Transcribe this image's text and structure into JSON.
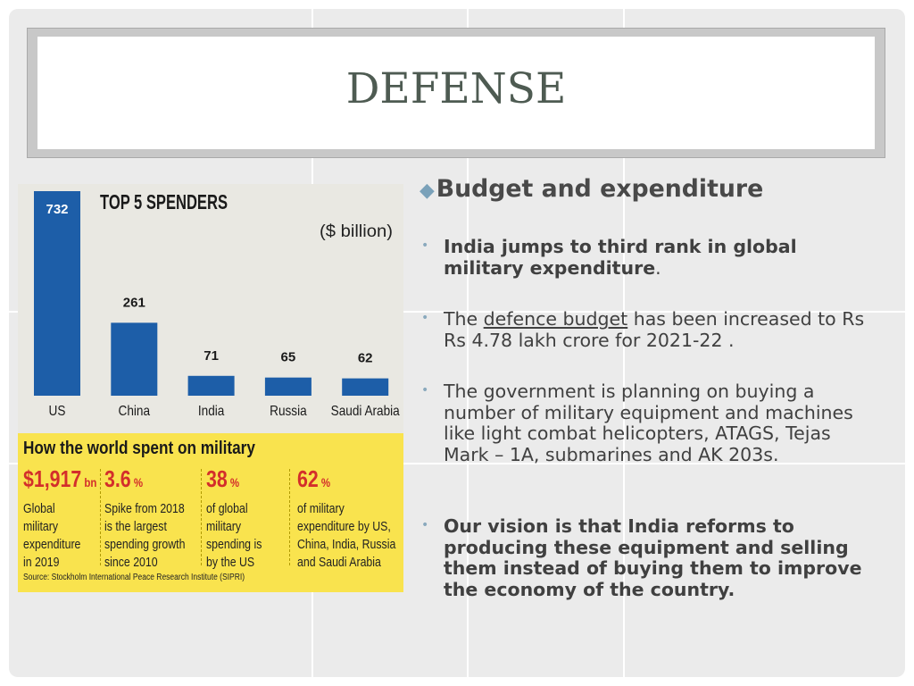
{
  "slide": {
    "title": "DEFENSE",
    "heading": "Budget and expenditure",
    "heading_bullet_icon": "diamond-icon",
    "bullets": [
      {
        "parts": [
          {
            "text": "India jumps to third rank in global military expenditure",
            "bold": true
          },
          {
            "text": ".",
            "bold": false
          }
        ]
      },
      {
        "parts": [
          {
            "text": "The ",
            "bold": false
          },
          {
            "text": "defence budget",
            "link": true
          },
          {
            "text": " has been increased to Rs Rs 4.78 lakh crore for 2021-22 .",
            "bold": false
          }
        ]
      },
      {
        "parts": [
          {
            "text": "The government is planning on buying a number of military equipment and machines like light combat helicopters, ATAGS, Tejas Mark – 1A, submarines and AK 203s.",
            "bold": false
          }
        ]
      },
      {
        "parts": [
          {
            "text": "Our vision is that India reforms to producing these equipment and selling them instead of buying them to improve the economy of the country.",
            "bold": true
          }
        ]
      }
    ]
  },
  "chart_data": {
    "type": "bar",
    "title": "TOP 5 SPENDERS",
    "unit_label": "($ billion)",
    "categories": [
      "US",
      "China",
      "India",
      "Russia",
      "Saudi Arabia"
    ],
    "values": [
      732,
      261,
      71,
      65,
      62
    ],
    "value_labels": [
      "732",
      "261",
      "71",
      "65",
      "62"
    ],
    "bar_color": "#1d5ea8",
    "ylim": [
      0,
      732
    ]
  },
  "infographic": {
    "title": "How the world spent on military",
    "stats": [
      {
        "value": "$1,917",
        "unit": "bn",
        "lines": [
          "Global",
          "military",
          "expenditure",
          "in 2019"
        ]
      },
      {
        "value": "3.6",
        "unit": "%",
        "lines": [
          "Spike from 2018",
          "is the largest",
          "spending growth",
          "since 2010"
        ]
      },
      {
        "value": "38",
        "unit": "%",
        "lines": [
          "of global",
          "military",
          "spending is",
          "by the US"
        ]
      },
      {
        "value": "62",
        "unit": "%",
        "lines": [
          "of military",
          "expenditure by US,",
          "China, India, Russia",
          "and Saudi Arabia"
        ]
      }
    ],
    "source": "Source: Stockholm International Peace Research Institute (SIPRI)",
    "value_color": "#d32e2b"
  }
}
